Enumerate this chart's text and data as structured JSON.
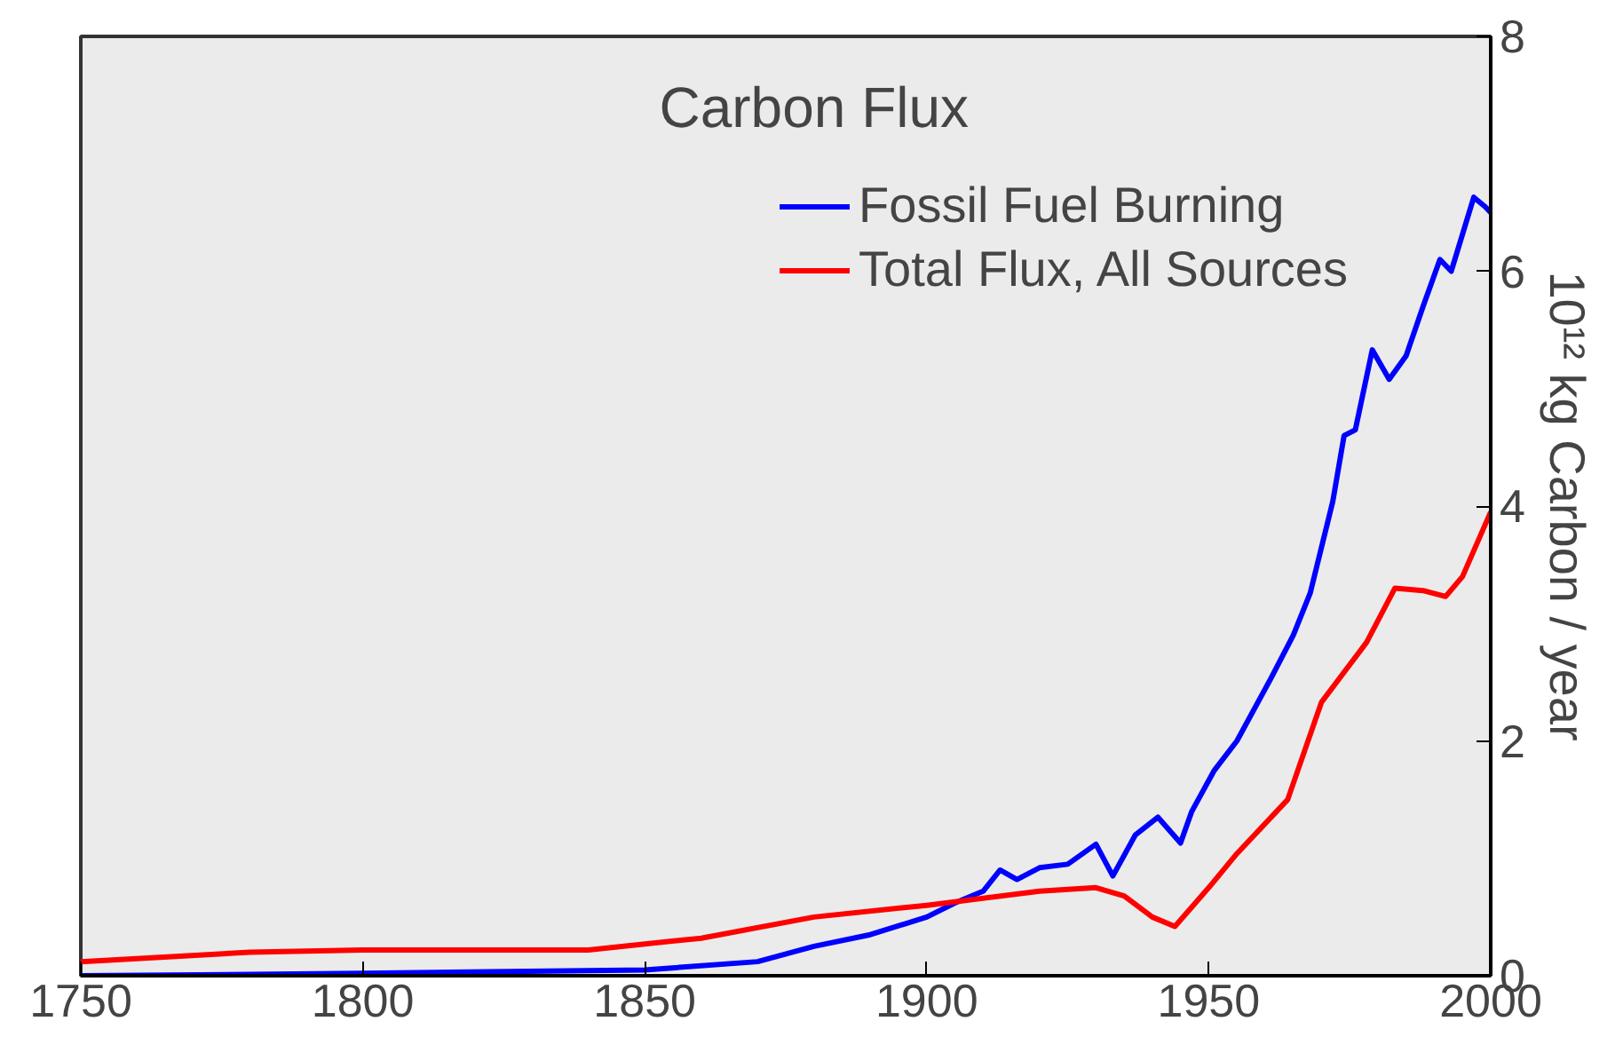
{
  "chart_data": {
    "type": "line",
    "title": "Carbon Flux",
    "y2label": "10¹² kg Carbon / year",
    "xlim": [
      1750,
      2000
    ],
    "xticks": [
      1750,
      1800,
      1850,
      1900,
      1950,
      2000
    ],
    "ylim": [
      0,
      8
    ],
    "yticks": [
      0,
      2,
      4,
      6,
      8
    ],
    "grid": false,
    "legend": "top right",
    "line_style": "solid",
    "series": [
      {
        "name": "Fossil Fuel Burning",
        "color": "#0000ff",
        "x": [
          1750,
          1800,
          1850,
          1870,
          1880,
          1890,
          1900,
          1905,
          1910,
          1913,
          1916,
          1920,
          1925,
          1930,
          1933,
          1937,
          1941,
          1945,
          1947,
          1951,
          1955,
          1961,
          1965,
          1968,
          1972,
          1974,
          1976,
          1979,
          1982,
          1985,
          1988,
          1991,
          1993,
          1997,
          1999,
          2000
        ],
        "values": [
          0.0,
          0.02,
          0.05,
          0.12,
          0.25,
          0.35,
          0.5,
          0.62,
          0.72,
          0.9,
          0.82,
          0.92,
          0.95,
          1.12,
          0.85,
          1.2,
          1.35,
          1.13,
          1.4,
          1.75,
          2.0,
          2.53,
          2.9,
          3.26,
          4.04,
          4.6,
          4.65,
          5.33,
          5.08,
          5.28,
          5.7,
          6.1,
          6.0,
          6.63,
          6.55,
          6.5
        ]
      },
      {
        "name": "Total Flux, All Sources",
        "color": "#ff0000",
        "x": [
          1750,
          1780,
          1800,
          1840,
          1860,
          1880,
          1900,
          1920,
          1930,
          1935,
          1940,
          1944,
          1950,
          1955,
          1964,
          1970,
          1978,
          1983,
          1988,
          1992,
          1995,
          2000
        ],
        "values": [
          0.12,
          0.2,
          0.22,
          0.22,
          0.32,
          0.5,
          0.6,
          0.72,
          0.75,
          0.68,
          0.5,
          0.42,
          0.75,
          1.04,
          1.5,
          2.33,
          2.84,
          3.3,
          3.28,
          3.23,
          3.4,
          3.95
        ]
      }
    ]
  }
}
